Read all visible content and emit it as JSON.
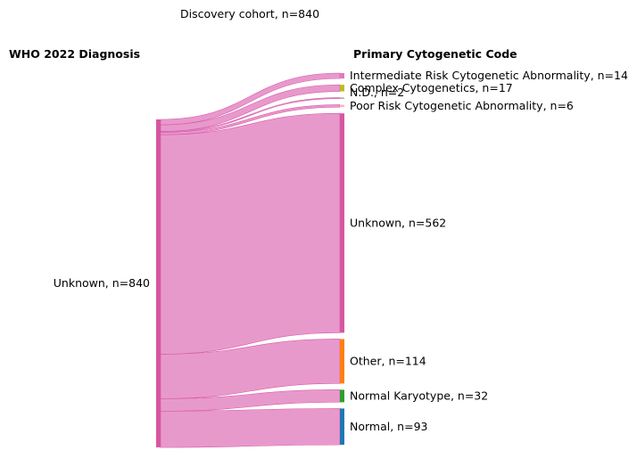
{
  "chart_data": {
    "type": "sankey",
    "title": "Discovery cohort, n=840",
    "left_header": "WHO 2022 Diagnosis",
    "right_header": "Primary Cytogenetic Code",
    "source_nodes": [
      {
        "name": "Unknown",
        "value": 840,
        "label": "Unknown, n=840",
        "color": "#d6579f"
      }
    ],
    "target_nodes": [
      {
        "name": "Intermediate Risk Cytogenetic Abnormality",
        "value": 14,
        "label": "Intermediate Risk Cytogenetic Abnormality, n=14",
        "color": "#e377c2"
      },
      {
        "name": "Complex Cytogenetics",
        "value": 17,
        "label": "Complex Cytogenetics, n=17",
        "color": "#bcbd22"
      },
      {
        "name": "N.D.",
        "value": 2,
        "label": "N.D., n=2",
        "color": "#7f7f7f"
      },
      {
        "name": "Poor Risk Cytogenetic Abnormality",
        "value": 6,
        "label": "Poor Risk Cytogenetic Abnormality, n=6",
        "color": "#f7b6d2"
      },
      {
        "name": "Unknown",
        "value": 562,
        "label": "Unknown, n=562",
        "color": "#d6579f"
      },
      {
        "name": "Other",
        "value": 114,
        "label": "Other, n=114",
        "color": "#ff7f0e"
      },
      {
        "name": "Normal Karyotype",
        "value": 32,
        "label": "Normal Karyotype, n=32",
        "color": "#2ca02c"
      },
      {
        "name": "Normal",
        "value": 93,
        "label": "Normal, n=93",
        "color": "#1f77b4"
      }
    ],
    "link_color": "#e27fbf"
  }
}
